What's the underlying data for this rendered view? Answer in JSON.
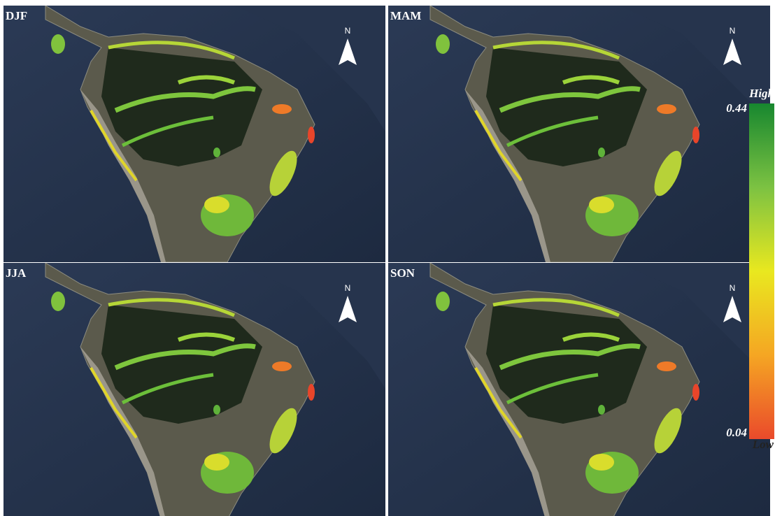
{
  "panels": [
    {
      "label": "DJF"
    },
    {
      "label": "MAM"
    },
    {
      "label": "JJA"
    },
    {
      "label": "SON"
    }
  ],
  "north_label": "N",
  "legend": {
    "high_label": "High",
    "low_label": "Low",
    "max": 0.44,
    "min": 0.04,
    "colors": [
      "#17872f",
      "#7cc242",
      "#e9e81f",
      "#f5a623",
      "#ea4a2b"
    ]
  }
}
